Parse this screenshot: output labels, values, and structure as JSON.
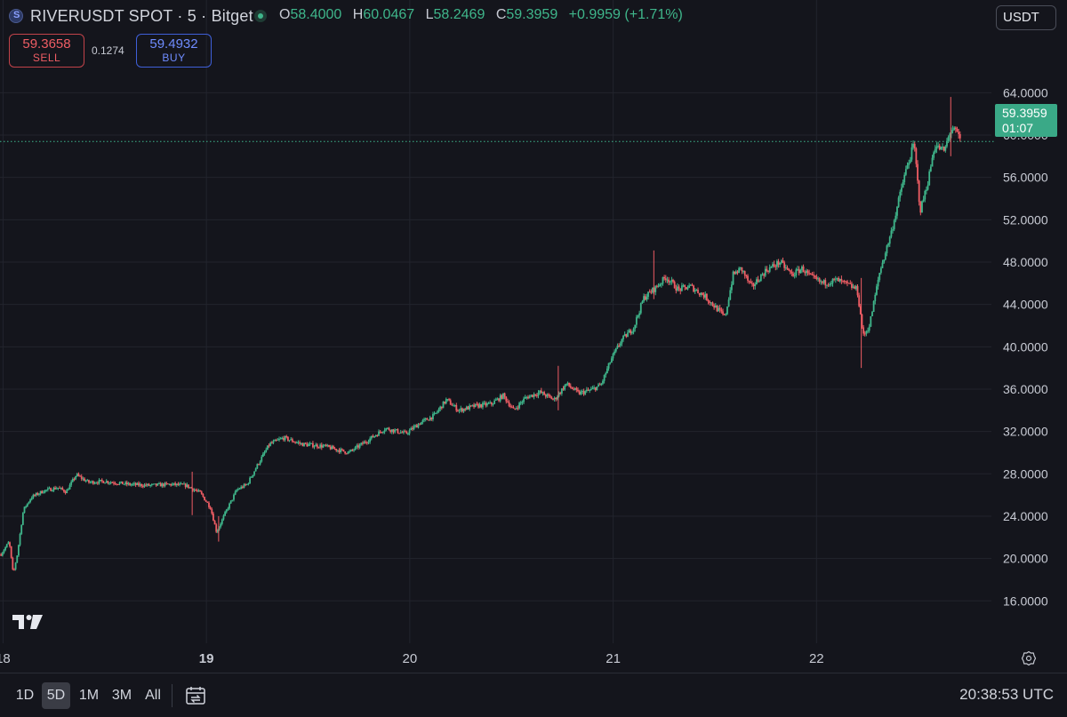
{
  "header": {
    "symbol_title": "RIVERUSDT SPOT · 5 · Bitget",
    "ohlc": [
      {
        "k": "O",
        "v": "58.4000"
      },
      {
        "k": "H",
        "v": "60.0467"
      },
      {
        "k": "L",
        "v": "58.2469"
      },
      {
        "k": "C",
        "v": "59.3959"
      }
    ],
    "change": "+0.9959 (+1.71%)",
    "currency": "USDT"
  },
  "trade": {
    "sell_price": "59.3658",
    "sell_label": "SELL",
    "spread": "0.1274",
    "buy_price": "59.4932",
    "buy_label": "BUY"
  },
  "last_price": {
    "price": "59.3959",
    "countdown": "01:07"
  },
  "colors": {
    "up": "#3fb68b",
    "down": "#ef5d64",
    "background": "#14151c",
    "grid": "#22242d",
    "accent_buy": "#6f8cff"
  },
  "icons": {
    "settings": "gear-icon",
    "compare": "calendar-compare-icon",
    "logo": "tradingview-logo-icon",
    "symbol": "river-coin-icon"
  },
  "bottom_bar": {
    "ranges": [
      "1D",
      "5D",
      "1M",
      "3M",
      "All"
    ],
    "active_range": "5D",
    "clock": "20:38:53 UTC"
  },
  "chart_data": {
    "type": "candlestick",
    "title": "",
    "xlabel": "",
    "ylabel": "",
    "ylim": [
      12.5,
      69.4
    ],
    "y_ticks": [
      "64.0000",
      "60.0000",
      "56.0000",
      "52.0000",
      "48.0000",
      "44.0000",
      "40.0000",
      "36.0000",
      "32.0000",
      "28.0000",
      "24.0000",
      "20.0000",
      "16.0000"
    ],
    "x_ticks": [
      {
        "label": "18",
        "day": 18,
        "bold": false
      },
      {
        "label": "19",
        "day": 19,
        "bold": true
      },
      {
        "label": "20",
        "day": 20,
        "bold": false
      },
      {
        "label": "21",
        "day": 21,
        "bold": false
      },
      {
        "label": "22",
        "day": 22,
        "bold": false
      }
    ],
    "grid": true,
    "price_line": 59.3959,
    "series": [
      {
        "price_path": [
          [
            17.99,
            20.4
          ],
          [
            18.03,
            21.6
          ],
          [
            18.05,
            18.5
          ],
          [
            18.07,
            20.4
          ],
          [
            18.1,
            24.6
          ],
          [
            18.14,
            25.8
          ],
          [
            18.2,
            26.4
          ],
          [
            18.27,
            26.7
          ],
          [
            18.31,
            26.3
          ],
          [
            18.36,
            27.9
          ],
          [
            18.42,
            27.2
          ],
          [
            18.5,
            27.3
          ],
          [
            18.62,
            27.0
          ],
          [
            18.72,
            26.9
          ],
          [
            18.82,
            27.0
          ],
          [
            18.9,
            26.9
          ],
          [
            18.97,
            26.2
          ],
          [
            19.02,
            24.8
          ],
          [
            19.05,
            22.5
          ],
          [
            19.1,
            24.6
          ],
          [
            19.15,
            26.5
          ],
          [
            19.2,
            27.0
          ],
          [
            19.25,
            28.8
          ],
          [
            19.31,
            30.8
          ],
          [
            19.38,
            31.4
          ],
          [
            19.47,
            30.8
          ],
          [
            19.58,
            30.6
          ],
          [
            19.7,
            30.0
          ],
          [
            19.78,
            31.0
          ],
          [
            19.88,
            32.3
          ],
          [
            19.98,
            31.8
          ],
          [
            20.05,
            32.8
          ],
          [
            20.12,
            33.5
          ],
          [
            20.18,
            35.0
          ],
          [
            20.24,
            34.0
          ],
          [
            20.32,
            34.4
          ],
          [
            20.4,
            34.6
          ],
          [
            20.46,
            35.4
          ],
          [
            20.51,
            34.0
          ],
          [
            20.57,
            35.2
          ],
          [
            20.64,
            35.7
          ],
          [
            20.71,
            35.0
          ],
          [
            20.77,
            36.5
          ],
          [
            20.83,
            35.6
          ],
          [
            20.89,
            35.9
          ],
          [
            20.94,
            36.4
          ],
          [
            20.99,
            38.8
          ],
          [
            21.04,
            40.6
          ],
          [
            21.1,
            41.8
          ],
          [
            21.15,
            44.6
          ],
          [
            21.21,
            45.6
          ],
          [
            21.26,
            46.6
          ],
          [
            21.32,
            45.4
          ],
          [
            21.38,
            45.7
          ],
          [
            21.45,
            44.8
          ],
          [
            21.5,
            43.8
          ],
          [
            21.55,
            42.8
          ],
          [
            21.59,
            46.8
          ],
          [
            21.63,
            47.4
          ],
          [
            21.68,
            45.6
          ],
          [
            21.75,
            47.2
          ],
          [
            21.82,
            48.0
          ],
          [
            21.88,
            46.8
          ],
          [
            21.93,
            47.4
          ],
          [
            21.97,
            46.6
          ],
          [
            22.03,
            46.0
          ],
          [
            22.1,
            46.3
          ],
          [
            22.16,
            45.8
          ],
          [
            22.2,
            45.4
          ],
          [
            22.23,
            41.0
          ],
          [
            22.26,
            42.0
          ],
          [
            22.31,
            47.0
          ],
          [
            22.37,
            51.0
          ],
          [
            22.43,
            56.0
          ],
          [
            22.48,
            59.2
          ],
          [
            22.51,
            52.8
          ],
          [
            22.55,
            55.8
          ],
          [
            22.58,
            59.0
          ],
          [
            22.63,
            58.5
          ],
          [
            22.66,
            60.6
          ],
          [
            22.69,
            60.2
          ],
          [
            22.71,
            59.4
          ]
        ]
      }
    ],
    "notable_wicks": [
      {
        "day": 18.93,
        "high": 28.2,
        "low": 24.1
      },
      {
        "day": 19.06,
        "high": 24.0,
        "low": 21.6
      },
      {
        "day": 20.73,
        "high": 38.2,
        "low": 34.0
      },
      {
        "day": 21.2,
        "high": 49.1,
        "low": 44.5
      },
      {
        "day": 22.22,
        "high": 46.5,
        "low": 38.0
      },
      {
        "day": 22.66,
        "high": 63.6,
        "low": 58.0
      }
    ]
  }
}
